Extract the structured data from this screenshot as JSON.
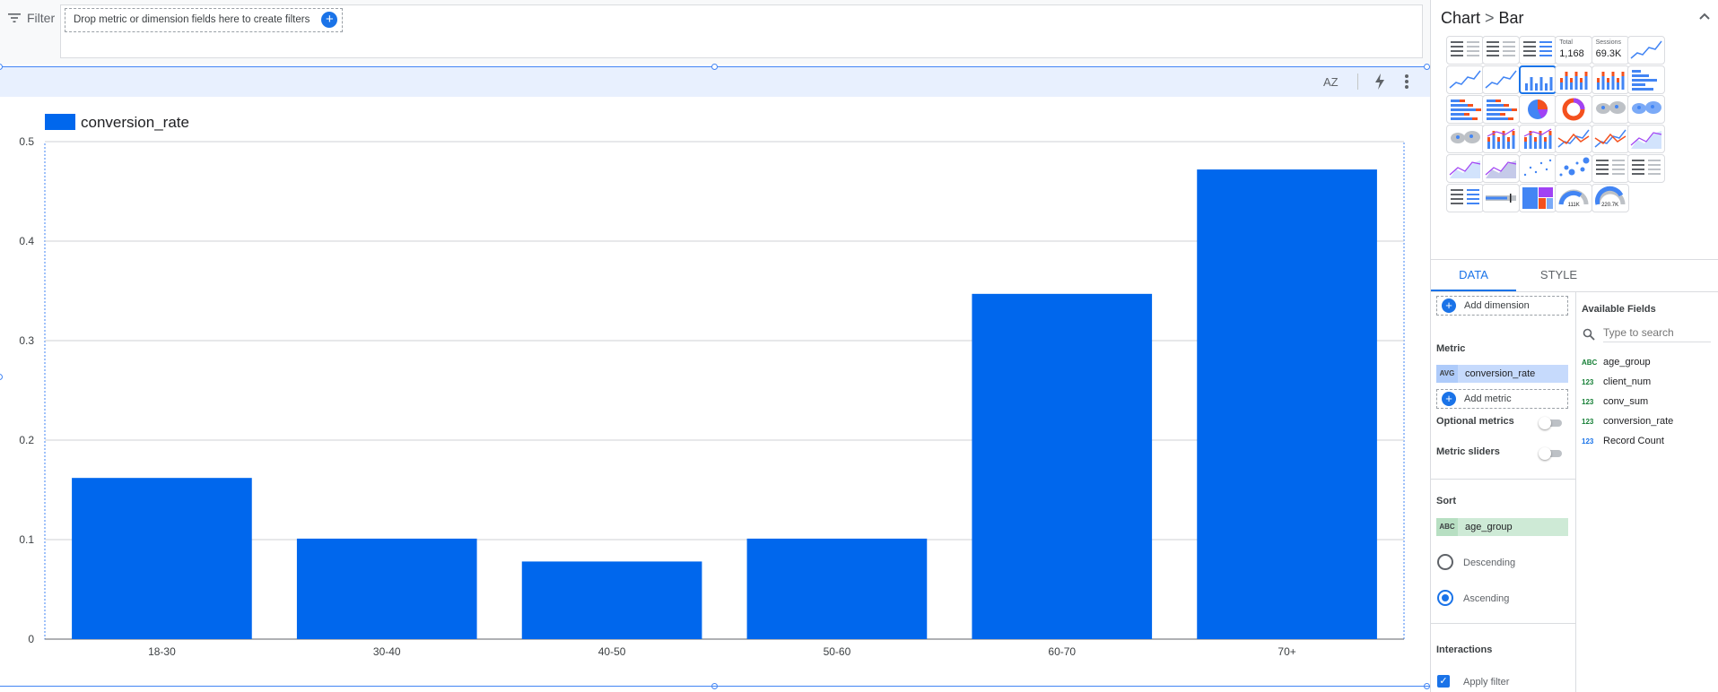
{
  "filter": {
    "label": "Filter",
    "drop_text": "Drop metric or dimension fields here to create filters",
    "plus": "+"
  },
  "toolbar": {
    "sort_label": "AZ",
    "icons": [
      "sort-az-icon",
      "bolt-icon",
      "more-vert-icon"
    ]
  },
  "chart_data": {
    "type": "bar",
    "categories": [
      "18-30",
      "30-40",
      "40-50",
      "50-60",
      "60-70",
      "70+"
    ],
    "series": [
      {
        "name": "conversion_rate",
        "values": [
          0.162,
          0.101,
          0.078,
          0.101,
          0.347,
          0.472
        ]
      }
    ],
    "ylim": [
      0,
      0.5
    ],
    "yticks": [
      "0",
      "0.1",
      "0.2",
      "0.3",
      "0.4",
      "0.5"
    ],
    "title": "",
    "xlabel": "",
    "ylabel": "",
    "grid": true,
    "legend": "top-left",
    "color": "#0067ed"
  },
  "panel": {
    "breadcrumb": {
      "root": "Chart",
      "sep": ">",
      "current": "Bar"
    },
    "thumbs": {
      "total_caption": "Total",
      "total_value": "1,168",
      "sessions_caption": "Sessions",
      "sessions_value": "69.3K",
      "gauge1_value": "111K",
      "gauge2_value": "220.7K"
    },
    "tabs": {
      "data": "DATA",
      "style": "STYLE"
    },
    "data": {
      "add_dimension": "Add dimension",
      "metric_title": "Metric",
      "metric_chip": {
        "agg": "AVG",
        "field": "conversion_rate"
      },
      "add_metric": "Add metric",
      "optional_metrics": "Optional metrics",
      "metric_sliders": "Metric sliders",
      "sort_title": "Sort",
      "sort_chip": {
        "type": "ABC",
        "field": "age_group"
      },
      "descending": "Descending",
      "ascending": "Ascending",
      "interactions_title": "Interactions",
      "apply_filter": "Apply filter"
    },
    "fields": {
      "title": "Available Fields",
      "search_placeholder": "Type to search",
      "items": [
        {
          "type": "ABC",
          "name": "age_group",
          "color": "#188038"
        },
        {
          "type": "123",
          "name": "client_num",
          "color": "#188038"
        },
        {
          "type": "123",
          "name": "conv_sum",
          "color": "#188038"
        },
        {
          "type": "123",
          "name": "conversion_rate",
          "color": "#188038"
        },
        {
          "type": "123",
          "name": "Record Count",
          "color": "#1a73e8"
        }
      ]
    }
  }
}
